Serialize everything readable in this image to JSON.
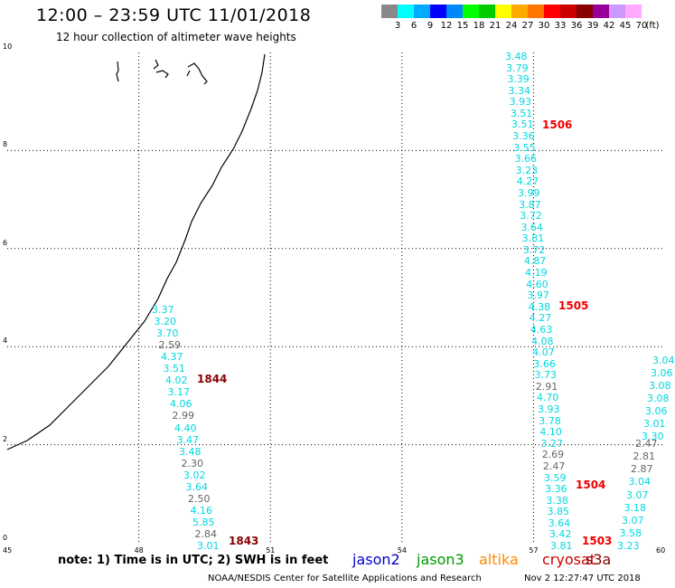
{
  "title": "12:00 – 23:59 UTC 11/01/2018",
  "subtitle": "12 hour collection of altimeter wave heights",
  "legend": {
    "unit": "(ft)",
    "swatches": [
      "#888888",
      "#00ffff",
      "#00aaff",
      "#0000ff",
      "#0088ff",
      "#00ff00",
      "#00cc00",
      "#ffff00",
      "#ffaa00",
      "#ff7700",
      "#ff0000",
      "#cc0000",
      "#880000",
      "#990099",
      "#cc99ff",
      "#ffaaff",
      "#ffffff"
    ],
    "levels": [
      "3",
      "6",
      "9",
      "12",
      "15",
      "18",
      "21",
      "24",
      "27",
      "30",
      "33",
      "36",
      "39",
      "42",
      "45",
      "70"
    ]
  },
  "axes": {
    "x_ticks": [
      "45",
      "48",
      "51",
      "54",
      "57",
      "60"
    ],
    "y_ticks": [
      "0",
      "2",
      "4",
      "6",
      "8",
      "10"
    ]
  },
  "note": "note: 1) Time is in UTC; 2) SWH is in feet",
  "satellites": [
    {
      "name": "jason2",
      "color": "#0000cc"
    },
    {
      "name": "jason3",
      "color": "#009900"
    },
    {
      "name": "altika",
      "color": "#ff8800"
    },
    {
      "name": "cryosat",
      "color": "#cc0000"
    },
    {
      "name": "s3a",
      "color": "#880000"
    }
  ],
  "footer": "NOAA/NESDIS Center for Satellite Applications and Research",
  "footer_date": "Nov  2 12:27:47 UTC 2018",
  "track_times": [
    {
      "label": "1844",
      "color": "#880000"
    },
    {
      "label": "1843",
      "color": "#880000"
    },
    {
      "label": "1506",
      "color": "#ee0000"
    },
    {
      "label": "1505",
      "color": "#ee0000"
    },
    {
      "label": "1504",
      "color": "#ee0000"
    },
    {
      "label": "1503",
      "color": "#ee0000"
    }
  ],
  "tracks": {
    "left": [
      "3.37",
      "3.20",
      "3.70",
      "2.59",
      "4.37",
      "3.51",
      "4.02",
      "3.17",
      "4.06",
      "2.99",
      "4.40",
      "3.47",
      "3.48",
      "2.30",
      "3.02",
      "3.64",
      "2.50",
      "4.16",
      "5.85",
      "2.84",
      "3.01"
    ],
    "middle": [
      "3.48",
      "3.79",
      "3.39",
      "3.34",
      "3.93",
      "3.51",
      "3.51",
      "3.36",
      "3.55",
      "3.66",
      "3.23",
      "4.27",
      "3.99",
      "3.87",
      "3.72",
      "3.64",
      "3.81",
      "3.72",
      "4.87",
      "4.19",
      "4.60",
      "3.97",
      "4.38",
      "4.27",
      "4.63",
      "4.08",
      "4.07",
      "3.66",
      "3.73",
      "2.91",
      "4.70",
      "3.93",
      "3.78",
      "4.10",
      "3.27",
      "2.69",
      "2.47",
      "3.59",
      "3.36",
      "3.38",
      "3.85",
      "3.64",
      "3.42",
      "3.81"
    ],
    "right": [
      "2.47",
      "2.81",
      "2.87",
      "3.04",
      "3.07",
      "3.18",
      "3.07",
      "3.58",
      "3.23"
    ],
    "right_upper": [
      "3.04",
      "3.06",
      "3.08",
      "3.08",
      "3.06",
      "3.01",
      "3.30"
    ]
  }
}
